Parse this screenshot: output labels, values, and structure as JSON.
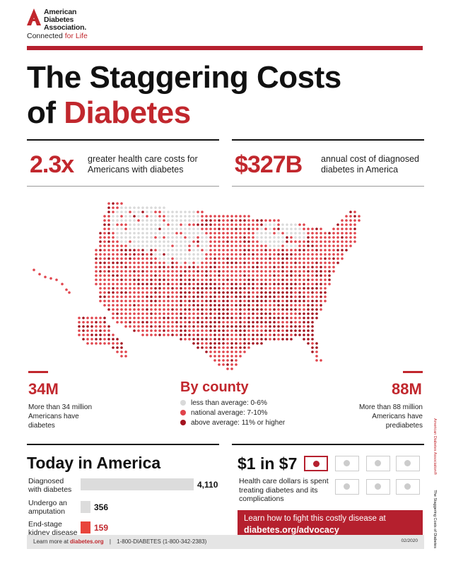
{
  "logo": {
    "line1": "American",
    "line2": "Diabetes",
    "line3": "Association.",
    "tag_prefix": "Connected ",
    "tag_highlight": "for Life"
  },
  "title": {
    "line1": "The Staggering Costs",
    "line2_prefix": "of ",
    "line2_highlight": "Diabetes"
  },
  "stats_top": [
    {
      "value": "2.3x",
      "text_l1": "greater health care costs for",
      "text_l2": "Americans with diabetes"
    },
    {
      "value": "$327B",
      "text_l1": "annual cost of diagnosed",
      "text_l2": "diabetes in America"
    }
  ],
  "left_stat": {
    "value": "34M",
    "l1": "More than 34 million",
    "l2": "Americans have",
    "l3": "diabetes"
  },
  "right_stat": {
    "value": "88M",
    "l1": "More than 88 million",
    "l2": "Americans have",
    "l3": "prediabetes"
  },
  "legend": {
    "title": "By county",
    "items": [
      {
        "label": "less than average: 0-6%",
        "color": "#d9d9d9"
      },
      {
        "label": "national average: 7-10%",
        "color": "#e0434b"
      },
      {
        "label": "above average: 11% or higher",
        "color": "#a3131f"
      }
    ]
  },
  "today": {
    "title": "Today in America",
    "rows": [
      {
        "l1": "Diagnosed",
        "l2": "with diabetes",
        "value": "4,110",
        "num": 4110,
        "color": "#dcdcdc"
      },
      {
        "l1": "Undergo an",
        "l2": "amputation",
        "value": "356",
        "num": 356,
        "color": "#dcdcdc"
      },
      {
        "l1": "End-stage",
        "l2": "kidney disease",
        "value": "159",
        "num": 159,
        "color": "#e8453c"
      }
    ]
  },
  "dollar": {
    "title": "$1 in $7",
    "l1": "Health care dollars is spent",
    "l2": "treating diabetes and its",
    "l3": "complications",
    "highlighted_bills": 1,
    "total_bills": 7
  },
  "cta": {
    "l1": "Learn how to fight this costly disease at",
    "l2": "diabetes.org/advocacy"
  },
  "footer": {
    "prefix": "Learn more at ",
    "site": "diabetes.org",
    "sep": "|",
    "phone": "1-800-DIABETES (1-800-342-2383)",
    "date": "02/2020"
  },
  "side": {
    "a": "The Staggering Costs of Diabetes",
    "b": "American Diabetes Association®"
  },
  "colors": {
    "brand_red": "#b5202e",
    "accent_red": "#c1272d",
    "below_average": "#d9d9d9",
    "average": "#e0434b",
    "above_average": "#a3131f"
  }
}
